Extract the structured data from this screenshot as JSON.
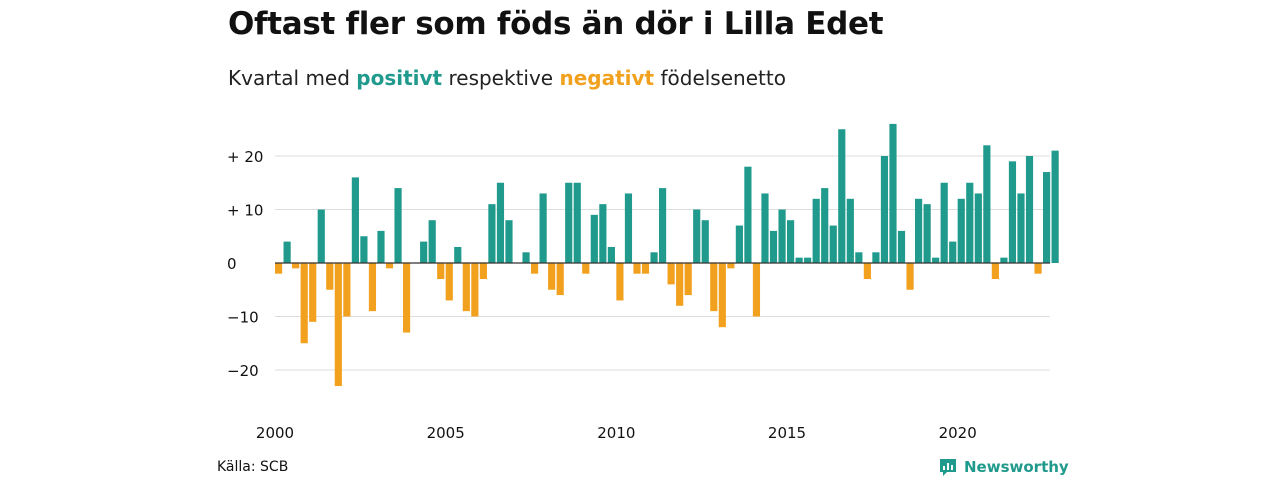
{
  "title": "Oftast fler som föds än dör i Lilla Edet",
  "subtitle": {
    "prefix": "Kvartal med ",
    "positive_word": "positivt",
    "middle": " respektive ",
    "negative_word": "negativt",
    "suffix": " födelsenetto"
  },
  "source": "Källa: SCB",
  "brand": {
    "name": "Newsworthy",
    "icon": "newsworthy-chart-icon"
  },
  "colors": {
    "positive": "#1f9a8c",
    "negative": "#f2a11f",
    "grid": "#dddddd",
    "zero_line": "#333333"
  },
  "chart_data": {
    "type": "bar",
    "x_start": "2000 Q1",
    "x_interval": "quarter",
    "xticks": [
      {
        "label": "2000",
        "year": 2000
      },
      {
        "label": "2005",
        "year": 2005
      },
      {
        "label": "2010",
        "year": 2010
      },
      {
        "label": "2015",
        "year": 2015
      },
      {
        "label": "2020",
        "year": 2020
      }
    ],
    "yticks": [
      {
        "value": 20,
        "label": "+ 20"
      },
      {
        "value": 10,
        "label": "+ 10"
      },
      {
        "value": 0,
        "label": "0"
      },
      {
        "value": -10,
        "label": "−10"
      },
      {
        "value": -20,
        "label": "−20"
      }
    ],
    "ylim": [
      -25,
      27
    ],
    "grid": true,
    "values": [
      -2,
      4,
      -1,
      -15,
      -11,
      10,
      -5,
      -23,
      -10,
      16,
      5,
      -9,
      6,
      -1,
      14,
      -13,
      0,
      4,
      8,
      -3,
      -7,
      3,
      -9,
      -10,
      -3,
      11,
      15,
      8,
      0,
      2,
      -2,
      13,
      -5,
      -6,
      15,
      15,
      -2,
      9,
      11,
      3,
      -7,
      13,
      -2,
      -2,
      2,
      14,
      -4,
      -8,
      -6,
      10,
      8,
      -9,
      -12,
      -1,
      7,
      18,
      -10,
      13,
      6,
      10,
      8,
      1,
      1,
      12,
      14,
      7,
      25,
      12,
      2,
      -3,
      2,
      20,
      26,
      6,
      -5,
      12,
      11,
      1,
      15,
      4,
      12,
      15,
      13,
      22,
      -3,
      1,
      19,
      13,
      20,
      -2,
      17,
      21
    ]
  }
}
